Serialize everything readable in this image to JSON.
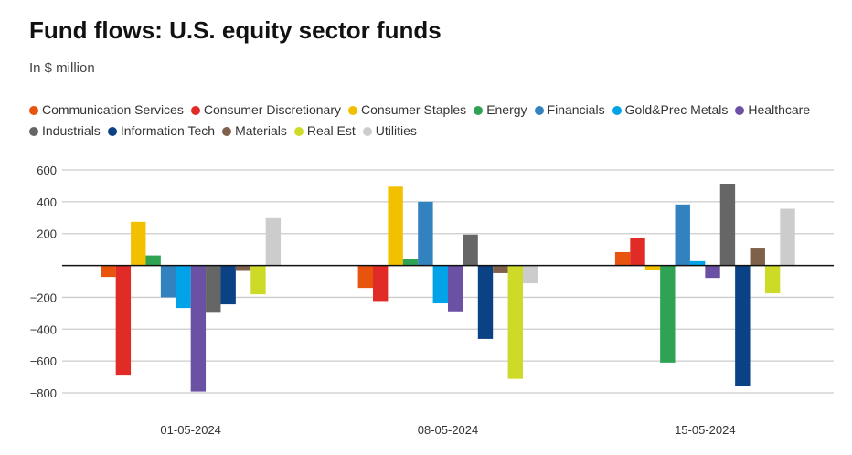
{
  "title": "Fund flows: U.S. equity sector funds",
  "subtitle": "In $ million",
  "chart_data": {
    "type": "bar",
    "title": "Fund flows: U.S. equity sector funds",
    "ylabel": "In $ million",
    "categories": [
      "01-05-2024",
      "08-05-2024",
      "15-05-2024"
    ],
    "ylim": [
      -800,
      600
    ],
    "yticks": [
      600,
      400,
      200,
      0,
      -200,
      -400,
      -600,
      -800
    ],
    "ytick_labels": [
      "600",
      "400",
      "200",
      "",
      "−200",
      "−400",
      "−600",
      "−800"
    ],
    "grid": true,
    "legend_position": "top",
    "series": [
      {
        "name": "Communication Services",
        "color": "#e8530e",
        "values": [
          -72,
          -141,
          84
        ]
      },
      {
        "name": "Consumer Discretionary",
        "color": "#e02b27",
        "values": [
          -686,
          -223,
          175
        ]
      },
      {
        "name": "Consumer Staples",
        "color": "#f3c000",
        "values": [
          274,
          495,
          -27
        ]
      },
      {
        "name": "Energy",
        "color": "#2fa353",
        "values": [
          63,
          40,
          -610
        ]
      },
      {
        "name": "Financials",
        "color": "#3282c0",
        "values": [
          -200,
          400,
          383
        ]
      },
      {
        "name": "Gold&Prec Metals",
        "color": "#00a3e8",
        "values": [
          -267,
          -238,
          27
        ]
      },
      {
        "name": "Healthcare",
        "color": "#6b51a3",
        "values": [
          -792,
          -288,
          -78
        ]
      },
      {
        "name": "Industrials",
        "color": "#666666",
        "values": [
          -297,
          194,
          514
        ]
      },
      {
        "name": "Information Tech",
        "color": "#0a4285",
        "values": [
          -244,
          -461,
          -758
        ]
      },
      {
        "name": "Materials",
        "color": "#7f604a",
        "values": [
          -34,
          -48,
          112
        ]
      },
      {
        "name": "Real Est",
        "color": "#cddb28",
        "values": [
          -181,
          -712,
          -175
        ]
      },
      {
        "name": "Utilities",
        "color": "#cccccc",
        "values": [
          297,
          -112,
          356
        ]
      }
    ]
  }
}
